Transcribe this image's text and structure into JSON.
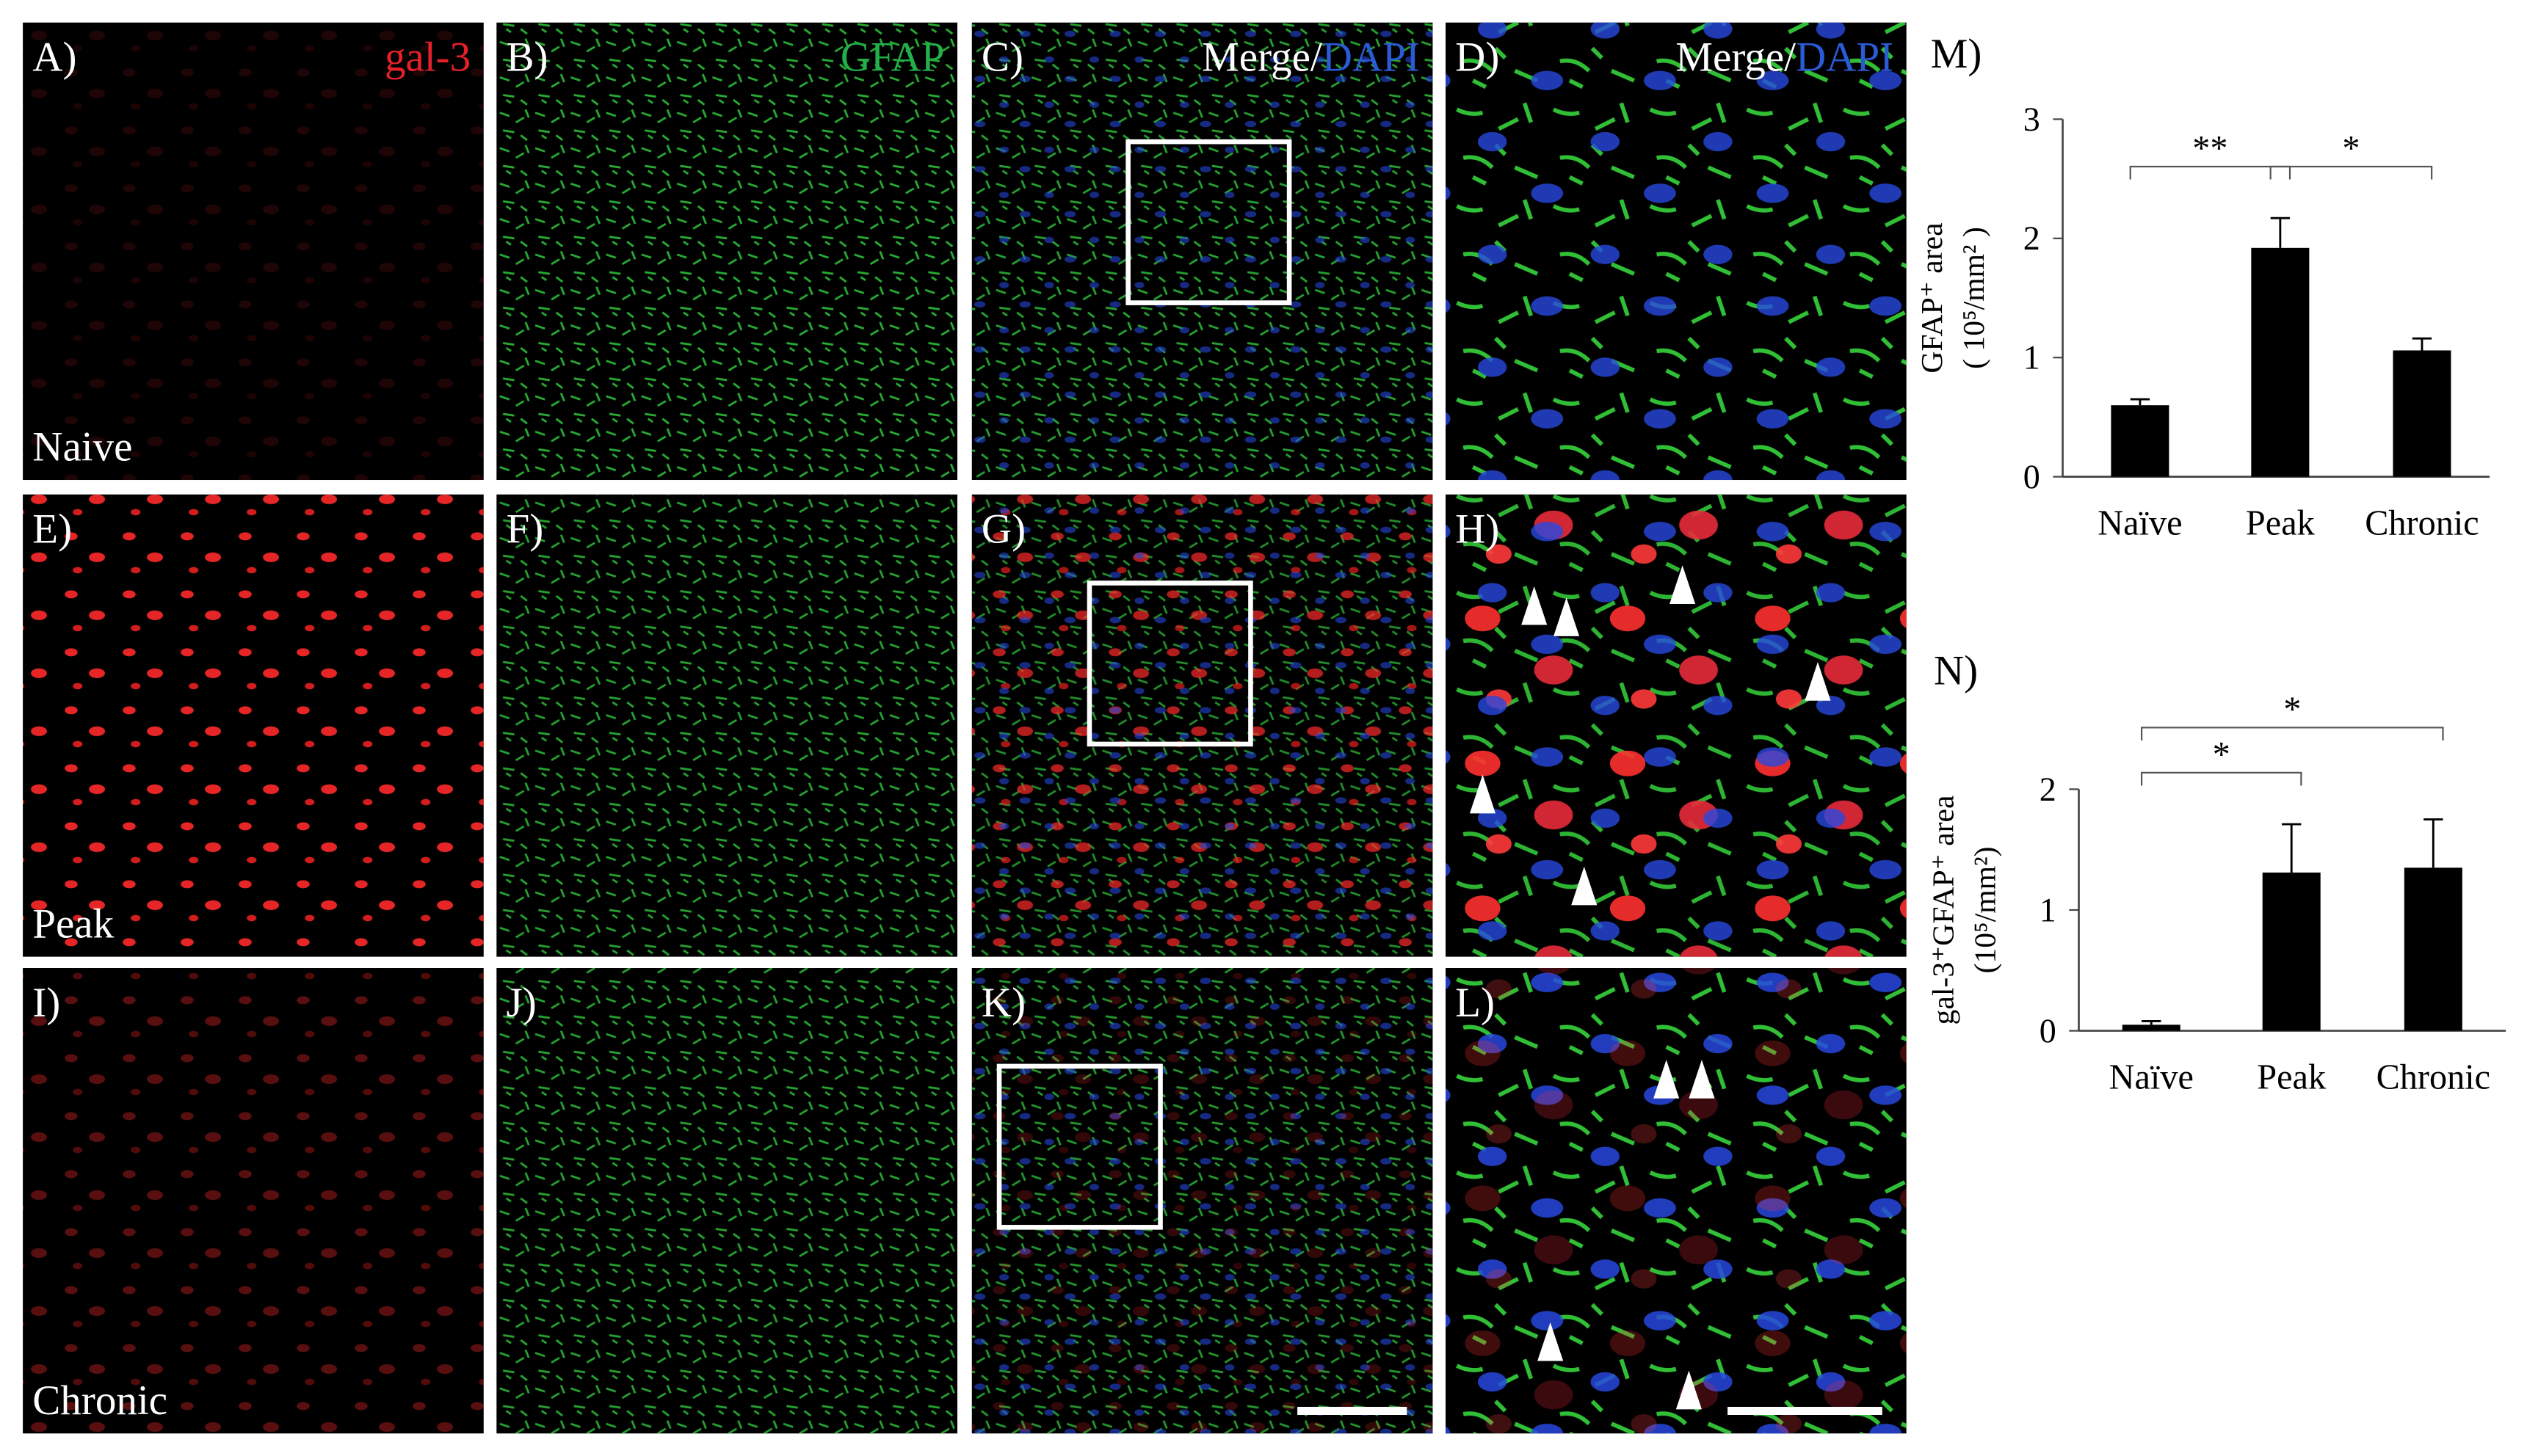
{
  "panels": [
    {
      "label": "A)",
      "channels": [
        {
          "text": "gal-3",
          "color": "#e8202a"
        }
      ],
      "row_label": "Naive"
    },
    {
      "label": "B)",
      "channels": [
        {
          "text": "GFAP",
          "color": "#22b04a"
        }
      ]
    },
    {
      "label": "C)",
      "channels": [
        {
          "text": "Merge/",
          "color": "#ffffff"
        },
        {
          "text": "DAPI",
          "color": "#2a5bd7"
        }
      ]
    },
    {
      "label": "D)",
      "channels": [
        {
          "text": "Merge/",
          "color": "#ffffff"
        },
        {
          "text": "DAPI",
          "color": "#2a5bd7"
        }
      ]
    },
    {
      "label": "E)",
      "row_label": "Peak"
    },
    {
      "label": "F)"
    },
    {
      "label": "G)"
    },
    {
      "label": "H)"
    },
    {
      "label": "I)",
      "row_label": "Chronic"
    },
    {
      "label": "J)"
    },
    {
      "label": "K)"
    },
    {
      "label": "L)"
    }
  ],
  "chart_data": [
    {
      "type": "bar",
      "label": "M)",
      "ylabel": [
        "GFAP⁺ area",
        "( 10⁵/mm² )"
      ],
      "categories": [
        "Naïve",
        "Peak",
        "Chronic"
      ],
      "values": [
        0.6,
        1.92,
        1.06
      ],
      "errors": [
        0.05,
        0.25,
        0.1
      ],
      "color": "#000000",
      "ylim": [
        0,
        3
      ],
      "yticks": [
        0,
        1,
        2,
        3
      ],
      "annotations": [
        {
          "text": "**",
          "between": [
            0,
            1
          ]
        },
        {
          "text": "*",
          "between": [
            1,
            2
          ]
        }
      ]
    },
    {
      "type": "bar",
      "label": "N)",
      "ylabel": [
        "gal-3⁺GFAP⁺ area",
        "(10⁵/mm²)"
      ],
      "categories": [
        "Naïve",
        "Peak",
        "Chronic"
      ],
      "values": [
        0.05,
        1.31,
        1.35
      ],
      "errors": [
        0.03,
        0.4,
        0.4
      ],
      "color": "#000000",
      "ylim": [
        0,
        2
      ],
      "yticks": [
        0,
        1,
        2
      ],
      "annotations": [
        {
          "text": "*",
          "between": [
            0,
            1
          ]
        },
        {
          "text": "*",
          "between": [
            0,
            2
          ]
        }
      ]
    }
  ]
}
